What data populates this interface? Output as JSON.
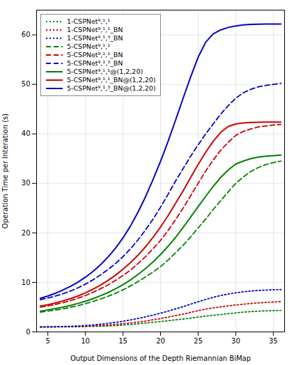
{
  "chart_data": {
    "type": "line",
    "xlabel": "Output Dimensions of the Depth Riemannian BiMap",
    "ylabel": "Operation Time per Interation (s)",
    "x": [
      4,
      5,
      6,
      7,
      8,
      9,
      10,
      11,
      12,
      13,
      14,
      15,
      16,
      17,
      18,
      19,
      20,
      21,
      22,
      23,
      24,
      25,
      26,
      27,
      28,
      29,
      30,
      31,
      32,
      33,
      34,
      35,
      36
    ],
    "series": [
      {
        "name": "1-CSPNet⁹,¹,¹",
        "color": "#008000",
        "line_style": "dotted",
        "values": [
          1.0,
          1.0,
          1.02,
          1.03,
          1.05,
          1.07,
          1.1,
          1.12,
          1.15,
          1.2,
          1.28,
          1.38,
          1.5,
          1.65,
          1.8,
          1.95,
          2.1,
          2.25,
          2.45,
          2.6,
          2.8,
          3.0,
          3.2,
          3.35,
          3.5,
          3.7,
          3.85,
          4.0,
          4.1,
          4.2,
          4.25,
          4.3,
          4.35
        ]
      },
      {
        "name": "1-CSPNet⁹,¹,¹_BN",
        "color": "#cc0000",
        "line_style": "dotted",
        "values": [
          1.0,
          1.0,
          1.02,
          1.04,
          1.07,
          1.1,
          1.15,
          1.2,
          1.28,
          1.38,
          1.5,
          1.65,
          1.82,
          2.0,
          2.2,
          2.45,
          2.7,
          3.0,
          3.3,
          3.6,
          3.95,
          4.3,
          4.6,
          4.85,
          5.05,
          5.25,
          5.45,
          5.6,
          5.75,
          5.85,
          5.95,
          6.05,
          6.1
        ]
      },
      {
        "name": "1-CSPNet⁹,¹,³_BN",
        "color": "#0000cc",
        "line_style": "dotted",
        "values": [
          1.0,
          1.0,
          1.05,
          1.08,
          1.12,
          1.18,
          1.28,
          1.4,
          1.55,
          1.72,
          1.92,
          2.15,
          2.42,
          2.72,
          3.05,
          3.4,
          3.8,
          4.2,
          4.65,
          5.1,
          5.6,
          6.1,
          6.55,
          7.0,
          7.35,
          7.65,
          7.9,
          8.1,
          8.25,
          8.38,
          8.45,
          8.52,
          8.55
        ]
      },
      {
        "name": "5-CSPNet⁹,¹,¹",
        "color": "#008000",
        "line_style": "dashed",
        "values": [
          4.0,
          4.2,
          4.4,
          4.65,
          4.95,
          5.3,
          5.7,
          6.15,
          6.65,
          7.2,
          7.8,
          8.5,
          9.3,
          10.15,
          11.1,
          12.1,
          13.2,
          14.5,
          16.0,
          17.5,
          19.2,
          21.0,
          22.8,
          24.7,
          26.5,
          28.3,
          30.0,
          31.3,
          32.4,
          33.2,
          33.8,
          34.2,
          34.5
        ]
      },
      {
        "name": "5-CSPNet⁹,¹,¹_BN",
        "color": "#cc0000",
        "line_style": "dashed",
        "values": [
          5.0,
          5.25,
          5.55,
          5.9,
          6.3,
          6.8,
          7.35,
          8.0,
          8.7,
          9.5,
          10.4,
          11.4,
          12.5,
          13.8,
          15.2,
          16.8,
          18.5,
          20.5,
          22.7,
          25.0,
          27.5,
          30.0,
          32.5,
          34.7,
          36.7,
          38.3,
          39.7,
          40.5,
          41.0,
          41.4,
          41.6,
          41.8,
          41.9
        ]
      },
      {
        "name": "5-CSPNet⁹,¹,³_BN",
        "color": "#0000cc",
        "line_style": "dashed",
        "values": [
          6.5,
          6.85,
          7.25,
          7.7,
          8.25,
          8.9,
          9.65,
          10.5,
          11.5,
          12.6,
          13.8,
          15.2,
          16.8,
          18.6,
          20.6,
          22.8,
          25.2,
          27.8,
          30.5,
          33.0,
          35.5,
          37.8,
          40.0,
          42.0,
          44.0,
          45.7,
          47.2,
          48.3,
          49.0,
          49.5,
          49.8,
          50.0,
          50.2
        ]
      },
      {
        "name": "5-CSPNet⁹,¹,¹@(1,2,20)",
        "color": "#008000",
        "line_style": "solid",
        "values": [
          4.2,
          4.45,
          4.7,
          5.0,
          5.35,
          5.75,
          6.2,
          6.72,
          7.3,
          7.95,
          8.7,
          9.55,
          10.5,
          11.6,
          12.8,
          14.15,
          15.65,
          17.3,
          19.1,
          21.1,
          23.2,
          25.3,
          27.4,
          29.4,
          31.2,
          32.7,
          33.9,
          34.5,
          35.0,
          35.3,
          35.5,
          35.6,
          35.7
        ]
      },
      {
        "name": "5-CSPNet⁹,¹,¹_BN@(1,2,20)",
        "color": "#cc0000",
        "line_style": "solid",
        "values": [
          5.2,
          5.5,
          5.85,
          6.25,
          6.72,
          7.25,
          7.9,
          8.62,
          9.45,
          10.4,
          11.45,
          12.65,
          14.0,
          15.5,
          17.2,
          19.1,
          21.2,
          23.5,
          26.0,
          28.5,
          31.2,
          33.8,
          36.3,
          38.5,
          40.3,
          41.5,
          42.0,
          42.2,
          42.3,
          42.35,
          42.4,
          42.4,
          42.4
        ]
      },
      {
        "name": "5-CSPNet⁹,¹,³_BN@(1,2,20)",
        "color": "#0000cc",
        "line_style": "solid",
        "values": [
          6.8,
          7.25,
          7.8,
          8.45,
          9.2,
          10.05,
          11.05,
          12.2,
          13.55,
          15.1,
          16.9,
          19.0,
          21.4,
          24.2,
          27.3,
          30.8,
          34.5,
          38.5,
          42.8,
          47.2,
          51.5,
          55.5,
          58.5,
          60.2,
          61.0,
          61.5,
          61.8,
          62.0,
          62.1,
          62.15,
          62.2,
          62.2,
          62.2
        ]
      }
    ],
    "xlim": [
      3.5,
      36.5
    ],
    "ylim": [
      0,
      65
    ],
    "xticks": [
      5,
      10,
      15,
      20,
      25,
      30,
      35
    ],
    "yticks": [
      0,
      10,
      20,
      30,
      40,
      50,
      60
    ],
    "grid": true,
    "legend": "upper left"
  }
}
